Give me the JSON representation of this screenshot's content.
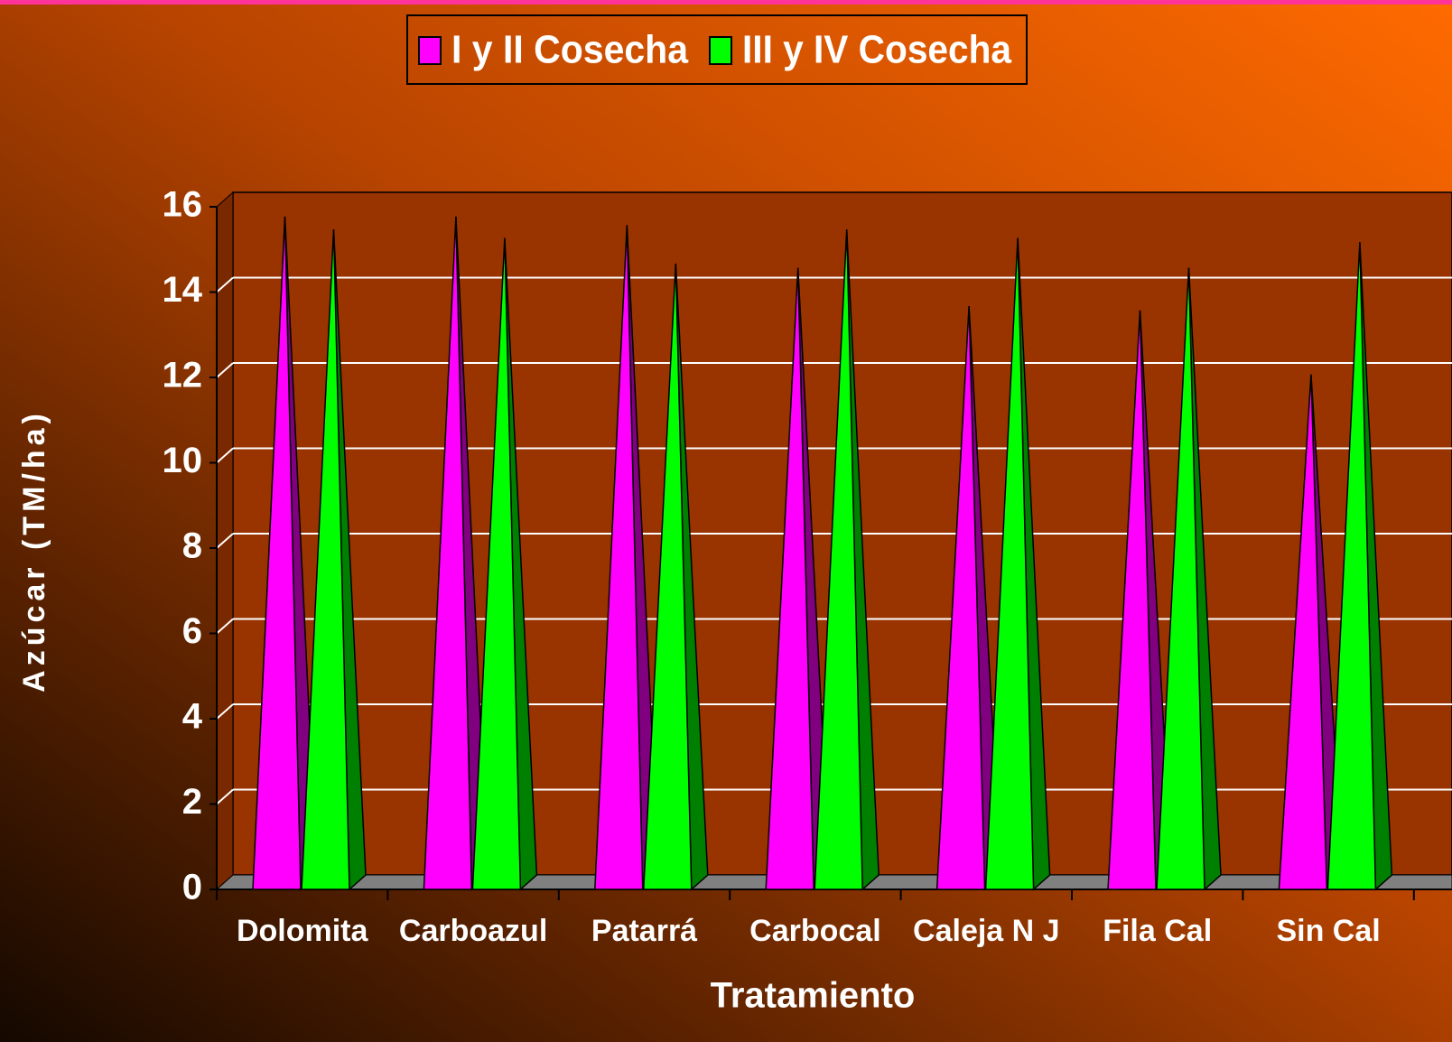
{
  "chart_data": {
    "type": "bar3d-pyramid",
    "legend": "top",
    "grid": true,
    "x_label": "Tratamiento",
    "y_label": "Azúcar (TM/ha)",
    "categories": [
      "Dolomita",
      "Carboazul",
      "Patarrá",
      "Carbocal",
      "Caleja N J",
      "Fila Cal",
      "Sin Cal"
    ],
    "series": [
      {
        "name": "I y II Cosecha",
        "color": "#ff00ff",
        "values": [
          15.6,
          15.6,
          15.4,
          14.4,
          13.5,
          13.4,
          11.9
        ]
      },
      {
        "name": "III y IV Cosecha",
        "color": "#00ff00",
        "values": [
          15.3,
          15.1,
          14.5,
          15.3,
          15.1,
          14.4,
          15.0
        ]
      }
    ],
    "ylim": [
      0,
      16
    ],
    "yticks": [
      0,
      2,
      4,
      6,
      8,
      10,
      12,
      14,
      16
    ]
  }
}
